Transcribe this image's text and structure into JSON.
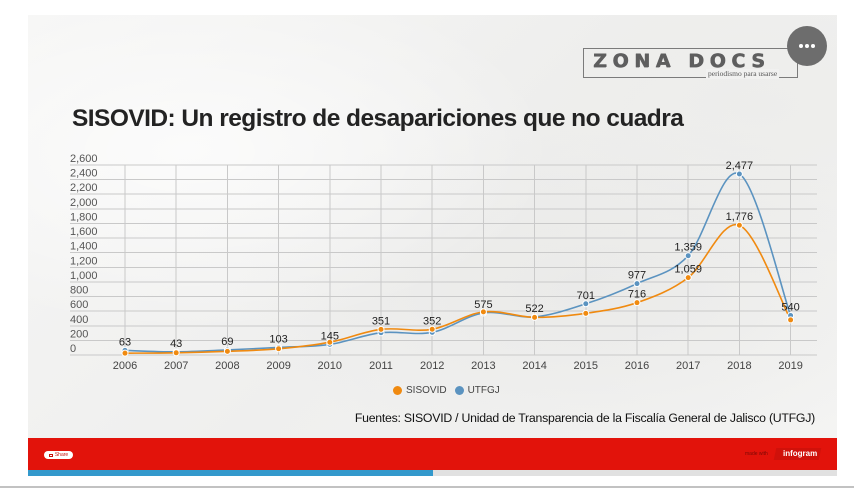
{
  "header": {
    "title": "SISOVID: Un registro de desapariciones que no cuadra",
    "logo": {
      "name": "ZONA DOCS",
      "tagline": "periodismo para usarse"
    },
    "more_button_icon": "ellipsis-icon"
  },
  "chart_data": {
    "type": "line",
    "title": "SISOVID: Un registro de desapariciones que no cuadra",
    "xlabel": "",
    "ylabel": "",
    "categories": [
      "2006",
      "2007",
      "2008",
      "2009",
      "2010",
      "2011",
      "2012",
      "2013",
      "2014",
      "2015",
      "2016",
      "2017",
      "2018",
      "2019"
    ],
    "ylim": [
      0,
      2600
    ],
    "yticks": [
      0,
      200,
      400,
      600,
      800,
      1000,
      1200,
      1400,
      1600,
      1800,
      2000,
      2200,
      2400,
      2600
    ],
    "grid": true,
    "smooth": true,
    "legend_position": "bottom",
    "series": [
      {
        "name": "SISOVID",
        "color": "#f08a10",
        "values": [
          25,
          30,
          50,
          85,
          175,
          351,
          352,
          590,
          515,
          570,
          716,
          1059,
          1776,
          480
        ],
        "labels_shown": [
          false,
          false,
          false,
          false,
          false,
          true,
          true,
          false,
          false,
          false,
          true,
          true,
          true,
          false
        ]
      },
      {
        "name": "UTFGJ",
        "color": "#5b93c0",
        "values": [
          63,
          43,
          69,
          103,
          145,
          305,
          310,
          575,
          522,
          701,
          977,
          1359,
          2477,
          540
        ],
        "labels_shown": [
          true,
          true,
          true,
          true,
          true,
          false,
          false,
          true,
          true,
          true,
          true,
          true,
          true,
          true
        ]
      }
    ]
  },
  "sources": "Fuentes: SISOVID / Unidad de Transparencia de la Fiscalía General de Jalisco (UTFGJ)",
  "footer": {
    "share_label": "Share",
    "made_with": "made with",
    "brand": "infogram",
    "progress_percent": 50,
    "accent_color": "#e2130b",
    "progress_color": "#3399cc"
  }
}
